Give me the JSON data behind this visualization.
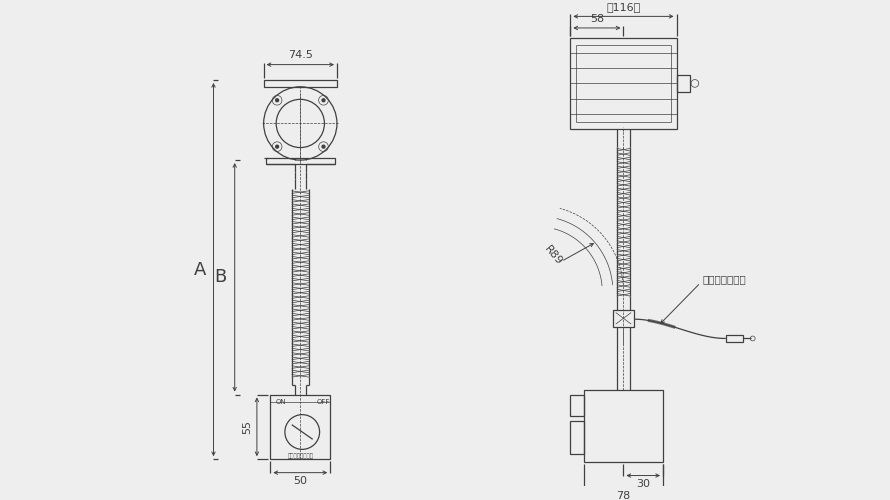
{
  "bg_color": "#eeeeee",
  "line_color": "#404040",
  "dim_74_5": "74.5",
  "dim_116": "（116）",
  "dim_58": "58",
  "dim_A": "A",
  "dim_B": "B",
  "dim_55": "55",
  "dim_50": "50",
  "dim_R89": "R89",
  "dim_30": "30",
  "dim_78": "78",
  "label_heat_shrink": "熱収縮チューブ",
  "lw": 0.9,
  "lw_thin": 0.5,
  "lw_dim": 0.7
}
